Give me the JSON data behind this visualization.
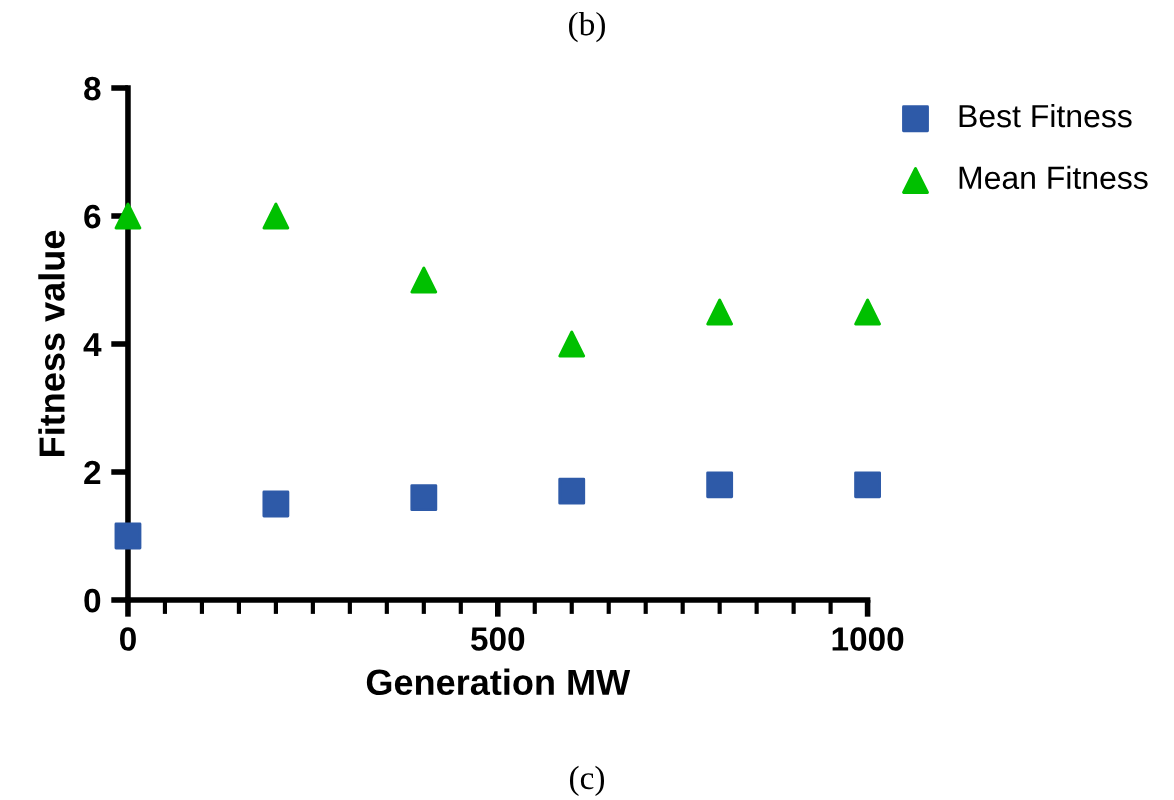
{
  "chart_data": {
    "type": "scatter",
    "xlabel": "Generation MW",
    "ylabel": "Fitness value",
    "annotations": [
      "(b)",
      "(c)"
    ],
    "x": [
      0,
      200,
      400,
      600,
      800,
      1000
    ],
    "series": [
      {
        "name": "Best Fitness",
        "color": "#2e5aa8",
        "marker": "square",
        "values": [
          1,
          1.5,
          1.6,
          1.7,
          1.8,
          1.8
        ]
      },
      {
        "name": "Mean Fitness",
        "color": "#00c000",
        "marker": "triangle",
        "values": [
          6,
          6,
          5,
          4,
          4.5,
          4.5
        ]
      }
    ],
    "xlim": [
      0,
      1000
    ],
    "xticks": [
      0,
      500,
      1000
    ],
    "ylim": [
      0,
      8
    ],
    "yticks": [
      0,
      2,
      4,
      6,
      8
    ],
    "grid": false,
    "legend": "top right"
  }
}
